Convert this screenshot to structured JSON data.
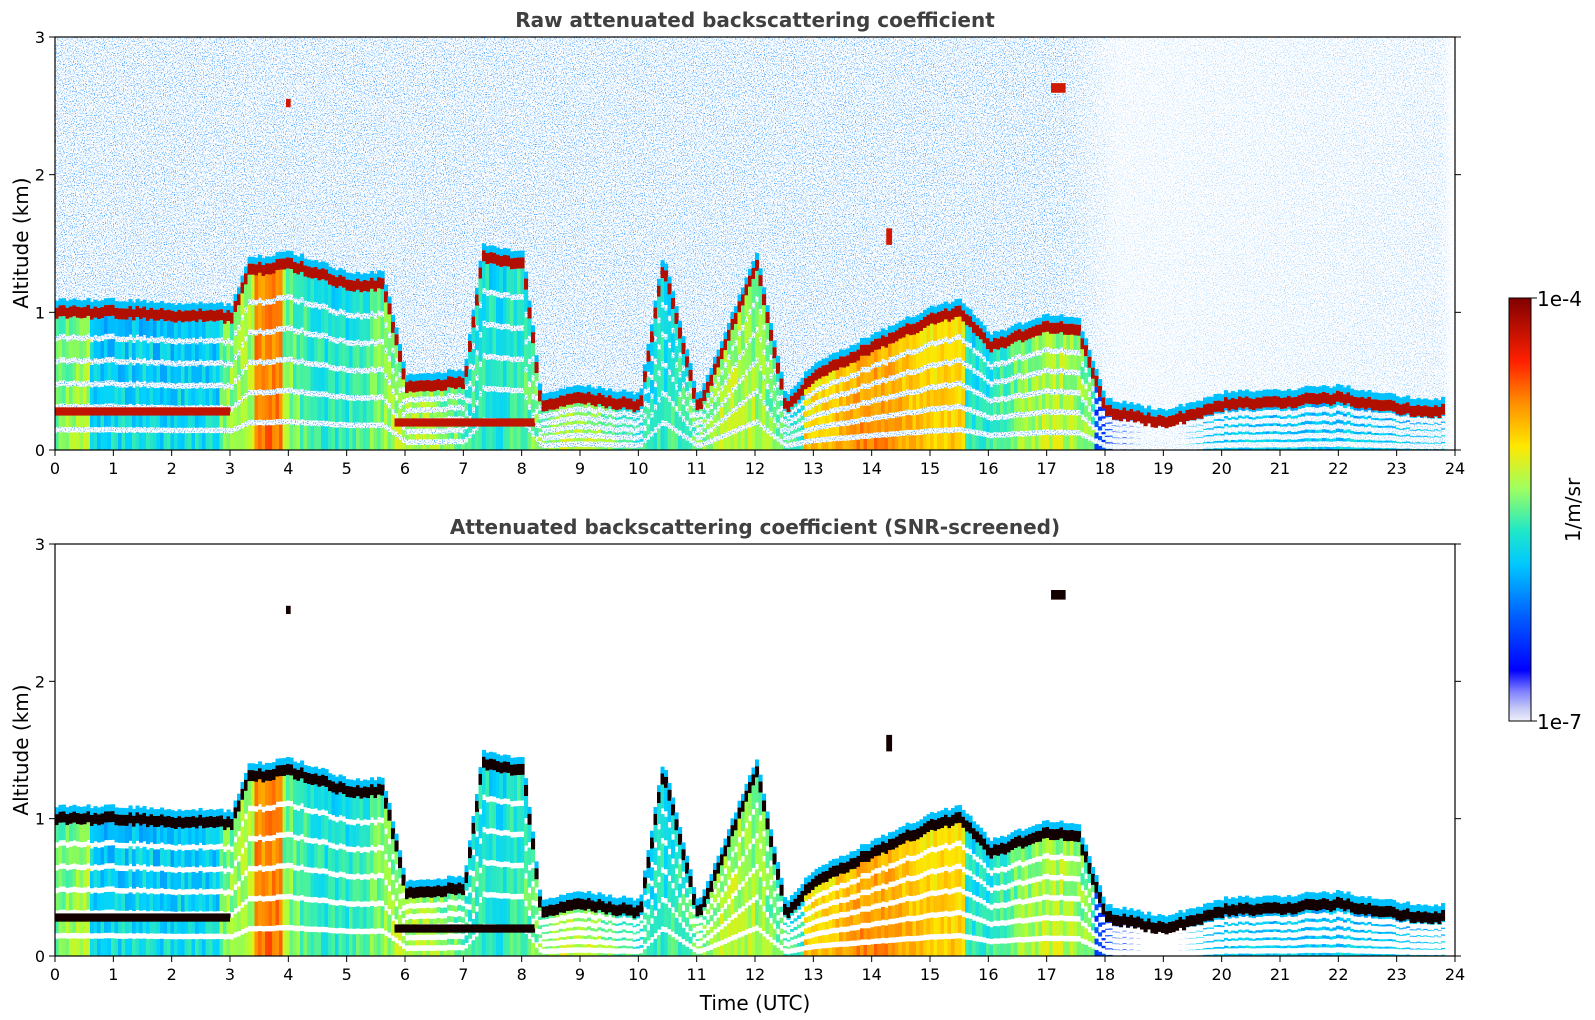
{
  "chart_data": [
    {
      "type": "heatmap",
      "title": "Raw attenuated backscattering coefficient",
      "xlabel": "",
      "ylabel": "Altitude (km)",
      "xlim": [
        0,
        24
      ],
      "ylim": [
        0,
        3
      ],
      "xticks": [
        "0",
        "1",
        "2",
        "3",
        "4",
        "5",
        "6",
        "7",
        "8",
        "9",
        "10",
        "11",
        "12",
        "13",
        "14",
        "15",
        "16",
        "17",
        "18",
        "19",
        "20",
        "21",
        "22",
        "23",
        "24"
      ],
      "yticks": [
        "0",
        "1",
        "2",
        "3"
      ],
      "features": {
        "cloud_base_layer": [
          {
            "t": 0,
            "z": 1.0
          },
          {
            "t": 1,
            "z": 1.0
          },
          {
            "t": 2,
            "z": 0.98
          },
          {
            "t": 3,
            "z": 0.97
          },
          {
            "t": 3.3,
            "z": 1.3
          },
          {
            "t": 4,
            "z": 1.35
          },
          {
            "t": 5,
            "z": 1.2
          },
          {
            "t": 5.6,
            "z": 1.2
          },
          {
            "t": 6,
            "z": 0.45
          },
          {
            "t": 7,
            "z": 0.5
          },
          {
            "t": 7.3,
            "z": 1.4
          },
          {
            "t": 8,
            "z": 1.35
          },
          {
            "t": 8.3,
            "z": 0.33
          },
          {
            "t": 9,
            "z": 0.38
          },
          {
            "t": 10,
            "z": 0.32
          },
          {
            "t": 10.4,
            "z": 1.35
          },
          {
            "t": 11,
            "z": 0.28
          },
          {
            "t": 12,
            "z": 1.35
          },
          {
            "t": 12.5,
            "z": 0.3
          },
          {
            "t": 13,
            "z": 0.55
          },
          {
            "t": 14,
            "z": 0.75
          },
          {
            "t": 15,
            "z": 0.95
          },
          {
            "t": 15.5,
            "z": 1.0
          },
          {
            "t": 16,
            "z": 0.75
          },
          {
            "t": 17,
            "z": 0.9
          },
          {
            "t": 17.5,
            "z": 0.88
          },
          {
            "t": 18,
            "z": 0.28
          },
          {
            "t": 19,
            "z": 0.2
          },
          {
            "t": 20,
            "z": 0.33
          },
          {
            "t": 21,
            "z": 0.35
          },
          {
            "t": 22,
            "z": 0.38
          },
          {
            "t": 23,
            "z": 0.3
          },
          {
            "t": 23.8,
            "z": 0.28
          }
        ]
      }
    },
    {
      "type": "heatmap",
      "title": "Attenuated backscattering coefficient (SNR-screened)",
      "xlabel": "Time (UTC)",
      "ylabel": "Altitude (km)",
      "xlim": [
        0,
        24
      ],
      "ylim": [
        0,
        3
      ],
      "xticks": [
        "0",
        "1",
        "2",
        "3",
        "4",
        "5",
        "6",
        "7",
        "8",
        "9",
        "10",
        "11",
        "12",
        "13",
        "14",
        "15",
        "16",
        "17",
        "18",
        "19",
        "20",
        "21",
        "22",
        "23",
        "24"
      ],
      "yticks": [
        "0",
        "1",
        "2",
        "3"
      ]
    }
  ],
  "colorbar": {
    "label": "1/m/sr",
    "max_label": "1e-4",
    "min_label": "1e-7",
    "range": [
      1e-07,
      0.0001
    ],
    "scale": "log",
    "colormap": "jet"
  }
}
